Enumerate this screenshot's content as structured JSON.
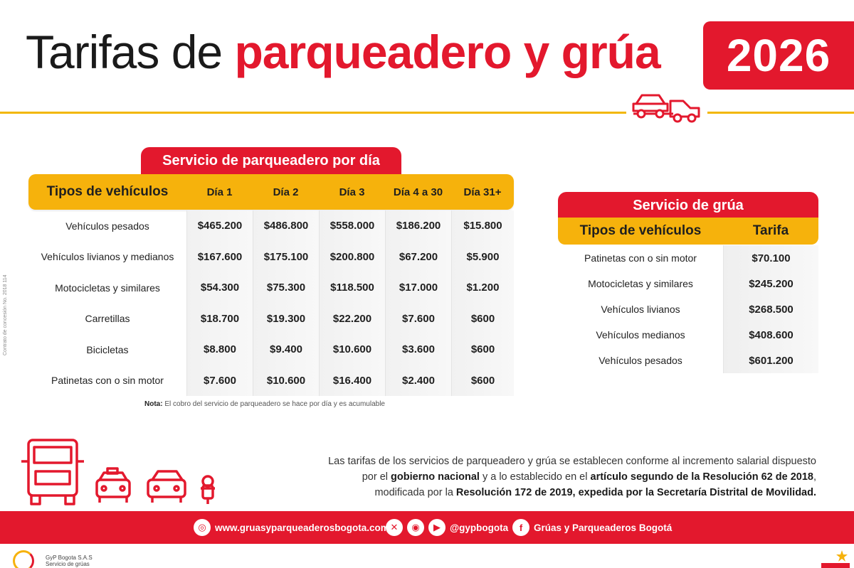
{
  "header": {
    "title_plain": "Tarifas de",
    "title_red": "parqueadero y grúa",
    "year": "2026",
    "side_note": "Contrato de concesión No. 2018 114"
  },
  "parking": {
    "title": "Servicio de parqueadero por día",
    "columns": [
      "Tipos de vehículos",
      "Día 1",
      "Día 2",
      "Día 3",
      "Día 4 a 30",
      "Día 31+"
    ],
    "rows": [
      {
        "label": "Vehículos pesados",
        "values": [
          "$465.200",
          "$486.800",
          "$558.000",
          "$186.200",
          "$15.800"
        ]
      },
      {
        "label": "Vehículos livianos y medianos",
        "values": [
          "$167.600",
          "$175.100",
          "$200.800",
          "$67.200",
          "$5.900"
        ]
      },
      {
        "label": "Motocicletas y similares",
        "values": [
          "$54.300",
          "$75.300",
          "$118.500",
          "$17.000",
          "$1.200"
        ]
      },
      {
        "label": "Carretillas",
        "values": [
          "$18.700",
          "$19.300",
          "$22.200",
          "$7.600",
          "$600"
        ]
      },
      {
        "label": "Bicicletas",
        "values": [
          "$8.800",
          "$9.400",
          "$10.600",
          "$3.600",
          "$600"
        ]
      },
      {
        "label": "Patinetas con o sin motor",
        "values": [
          "$7.600",
          "$10.600",
          "$16.400",
          "$2.400",
          "$600"
        ]
      }
    ],
    "note_label": "Nota:",
    "note_text": "El cobro del servicio de parqueadero se hace por día y es acumulable"
  },
  "tow": {
    "title": "Servicio de grúa",
    "columns": [
      "Tipos de vehículos",
      "Tarifa"
    ],
    "rows": [
      {
        "label": "Patinetas con o sin motor",
        "value": "$70.100"
      },
      {
        "label": "Motocicletas y similares",
        "value": "$245.200"
      },
      {
        "label": "Vehículos livianos",
        "value": "$268.500"
      },
      {
        "label": "Vehículos medianos",
        "value": "$408.600"
      },
      {
        "label": "Vehículos pesados",
        "value": "$601.200"
      }
    ]
  },
  "info": {
    "line1": "Las tarifas de los servicios de parqueadero y grúa se establecen conforme al incremento salarial dispuesto",
    "line2_a": "por el ",
    "line2_b": "gobierno nacional",
    "line2_c": " y a lo establecido en el ",
    "line2_d": "artículo segundo de la Resolución 62 de 2018",
    "line2_e": ",",
    "line3_a": "modificada por la ",
    "line3_b": "Resolución 172 de 2019, expedida por la Secretaría Distrital de Movilidad."
  },
  "footer": {
    "website": "www.gruasyparqueaderosbogota.com",
    "handle": "@gypbogota",
    "facebook": "Grúas y Parqueaderos Bogotá",
    "company_line1": "GyP Bogota S.A.S",
    "company_line2": "Servicio de grúas"
  },
  "colors": {
    "red": "#e3182d",
    "gold": "#f6b20c"
  }
}
